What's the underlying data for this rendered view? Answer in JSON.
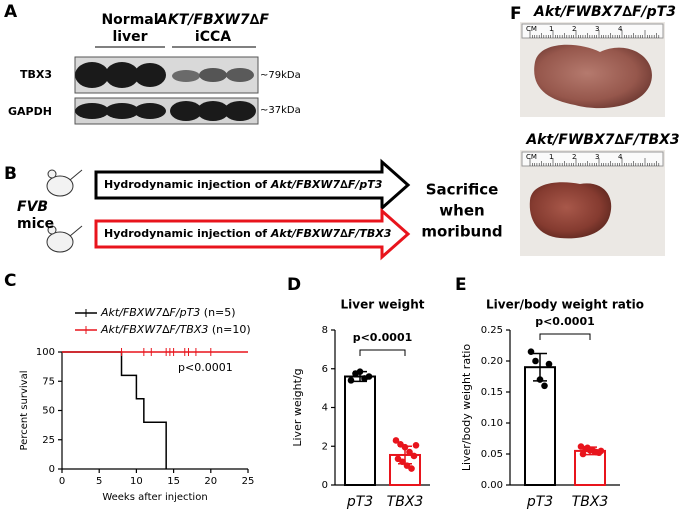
{
  "panel_a": {
    "label": "A",
    "header_1_line1": "Normal",
    "header_1_line2": "liver",
    "header_2_line1": "AKT/FBXW7∆F",
    "header_2_line2": "iCCA",
    "rows": [
      "TBX3",
      "GAPDH"
    ],
    "markers": [
      "~79kDa",
      "~37kDa"
    ]
  },
  "panel_b": {
    "label": "B",
    "mouse_line1": "FVB",
    "mouse_line2": "mice",
    "prefix": "Hydrodynamic injection of",
    "constructs": [
      "Akt/FBXW7∆F/pT3",
      "Akt/FBXW7∆F/TBX3"
    ],
    "outcome": [
      "Sacrifice",
      "when",
      "moribund"
    ]
  },
  "panel_f": {
    "label": "F",
    "titles": [
      "Akt/FWBX7∆F/pT3",
      "Akt/FWBX7∆F/TBX3"
    ],
    "ruler_labels": [
      "CM",
      "1",
      "2",
      "3",
      "4"
    ]
  },
  "chart_data": [
    {
      "type": "line",
      "panel_label": "C",
      "xlabel": "Weeks after injection",
      "ylabel": "Percent survival",
      "annotation": "p<0.0001",
      "xlim": [
        0,
        25
      ],
      "xticks": [
        0,
        5,
        10,
        15,
        20,
        25
      ],
      "ylim": [
        0,
        100
      ],
      "yticks": [
        0,
        25,
        50,
        75,
        100
      ],
      "series": [
        {
          "name": "Akt/FBXW7∆F/pT3",
          "n_label": "(n=5)",
          "color": "#000000",
          "x": [
            0,
            8,
            10,
            11,
            14
          ],
          "values": [
            100,
            80,
            60,
            40,
            0
          ]
        },
        {
          "name": "Akt/FBXW7∆F/TBX3",
          "n_label": "(n=10)",
          "color": "#e8141c",
          "x": [
            0,
            25
          ],
          "values": [
            100,
            100
          ],
          "censor_x": [
            8,
            11,
            12,
            14,
            14.5,
            15,
            16.5,
            17,
            18,
            20
          ]
        }
      ]
    },
    {
      "type": "bar",
      "panel_label": "D",
      "title": "Liver weight",
      "ylabel": "Liver weight/g",
      "annotation": "p<0.0001",
      "categories": [
        "pT3",
        "TBX3"
      ],
      "colors": [
        "#000000",
        "#e8141c"
      ],
      "values": [
        5.6,
        1.55
      ],
      "errors": [
        0.25,
        0.45
      ],
      "points": [
        [
          5.4,
          5.75,
          5.85,
          5.5,
          5.6
        ],
        [
          2.3,
          2.1,
          1.95,
          1.7,
          1.5,
          1.35,
          1.2,
          1.0,
          0.85,
          2.05
        ]
      ],
      "ylim": [
        0,
        8
      ],
      "yticks": [
        0,
        2,
        4,
        6,
        8
      ]
    },
    {
      "type": "bar",
      "panel_label": "E",
      "title": "Liver/body weight ratio",
      "ylabel": "Liver/body weight ratio",
      "annotation": "p<0.0001",
      "categories": [
        "pT3",
        "TBX3"
      ],
      "colors": [
        "#000000",
        "#e8141c"
      ],
      "values": [
        0.19,
        0.055
      ],
      "errors": [
        0.022,
        0.006
      ],
      "points": [
        [
          0.215,
          0.2,
          0.17,
          0.16,
          0.195
        ],
        [
          0.062,
          0.058,
          0.056,
          0.054,
          0.052,
          0.05,
          0.06,
          0.057,
          0.053,
          0.055
        ]
      ],
      "ylim": [
        0,
        0.25
      ],
      "yticks": [
        {
          "value": 0,
          "label": "0.00"
        },
        0.05,
        {
          "value": 0.1,
          "label": "0.10"
        },
        0.15,
        {
          "value": 0.2,
          "label": "0.20"
        },
        0.25
      ]
    }
  ]
}
